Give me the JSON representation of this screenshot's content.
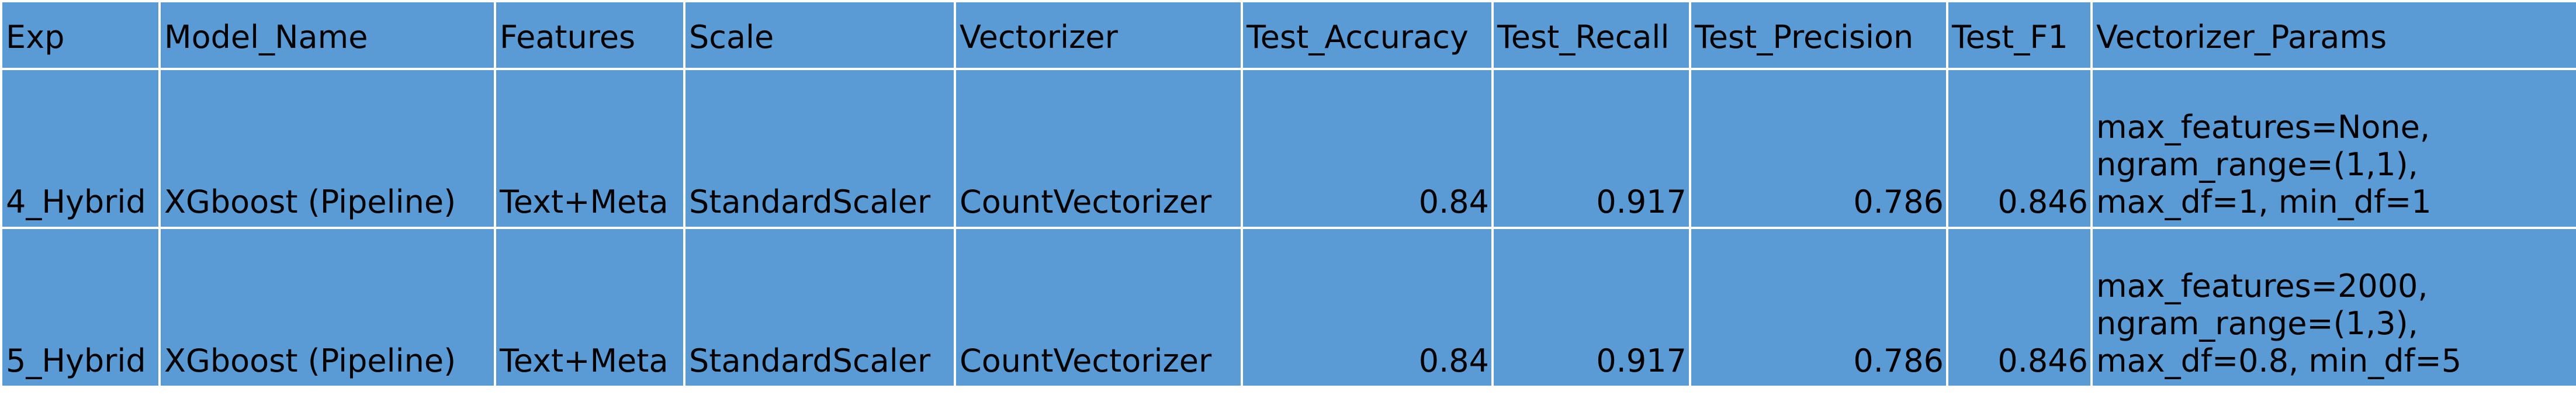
{
  "table": {
    "headers": [
      "Exp",
      "Model_Name",
      "Features",
      "Scale",
      "Vectorizer",
      "Test_Accuracy",
      "Test_Recall",
      "Test_Precision",
      "Test_F1",
      "Vectorizer_Params"
    ],
    "rows": [
      {
        "exp": "4_Hybrid",
        "model_name": "XGboost (Pipeline)",
        "features": "Text+Meta",
        "scale": "StandardScaler",
        "vectorizer": "CountVectorizer",
        "test_accuracy": "0.84",
        "test_recall": "0.917",
        "test_precision": "0.786",
        "test_f1": "0.846",
        "vectorizer_params": [
          "max_features=None,",
          "ngram_range=(1,1),",
          "max_df=1, min_df=1"
        ]
      },
      {
        "exp": "5_Hybrid",
        "model_name": "XGboost (Pipeline)",
        "features": "Text+Meta",
        "scale": "StandardScaler",
        "vectorizer": "CountVectorizer",
        "test_accuracy": "0.84",
        "test_recall": "0.917",
        "test_precision": "0.786",
        "test_f1": "0.846",
        "vectorizer_params": [
          "max_features=2000,",
          "ngram_range=(1,3),",
          "max_df=0.8, min_df=5"
        ]
      }
    ]
  },
  "colors": {
    "cell_fill": "#5b9bd5",
    "grid_lines": "#ffffff",
    "text": "#000000"
  }
}
